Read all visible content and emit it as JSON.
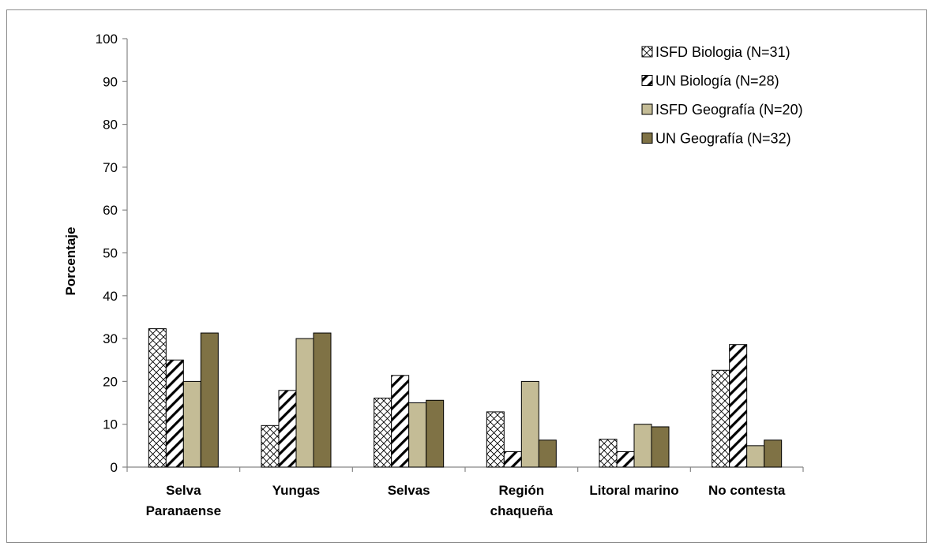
{
  "chart_data": {
    "type": "bar",
    "title": "",
    "xlabel": "",
    "ylabel": "Porcentaje",
    "ylim": [
      0,
      100
    ],
    "yticks": [
      0,
      10,
      20,
      30,
      40,
      50,
      60,
      70,
      80,
      90,
      100
    ],
    "grid": false,
    "legend_position": "top-right",
    "categories": [
      [
        "Selva",
        "Paranaense"
      ],
      [
        "Yungas"
      ],
      [
        "Selvas"
      ],
      [
        "Región",
        "chaqueña"
      ],
      [
        "Litoral marino"
      ],
      [
        "No contesta"
      ]
    ],
    "series": [
      {
        "name": "ISFD Biologia (N=31)",
        "values": [
          32.3,
          9.7,
          16.1,
          12.9,
          6.5,
          22.6
        ],
        "fill": "crosshatch",
        "color": "#000000"
      },
      {
        "name": "UN Biología (N=28)",
        "values": [
          25.0,
          17.9,
          21.4,
          3.6,
          3.6,
          28.6
        ],
        "fill": "diagonal",
        "color": "#000000"
      },
      {
        "name": "ISFD Geografía (N=20)",
        "values": [
          20.0,
          30.0,
          15.0,
          20.0,
          10.0,
          5.0
        ],
        "fill": "solid",
        "color": "#c4bc96"
      },
      {
        "name": "UN Geografía (N=32)",
        "values": [
          31.3,
          31.3,
          15.6,
          6.3,
          9.4,
          6.3
        ],
        "fill": "solid",
        "color": "#7f7245"
      }
    ]
  }
}
